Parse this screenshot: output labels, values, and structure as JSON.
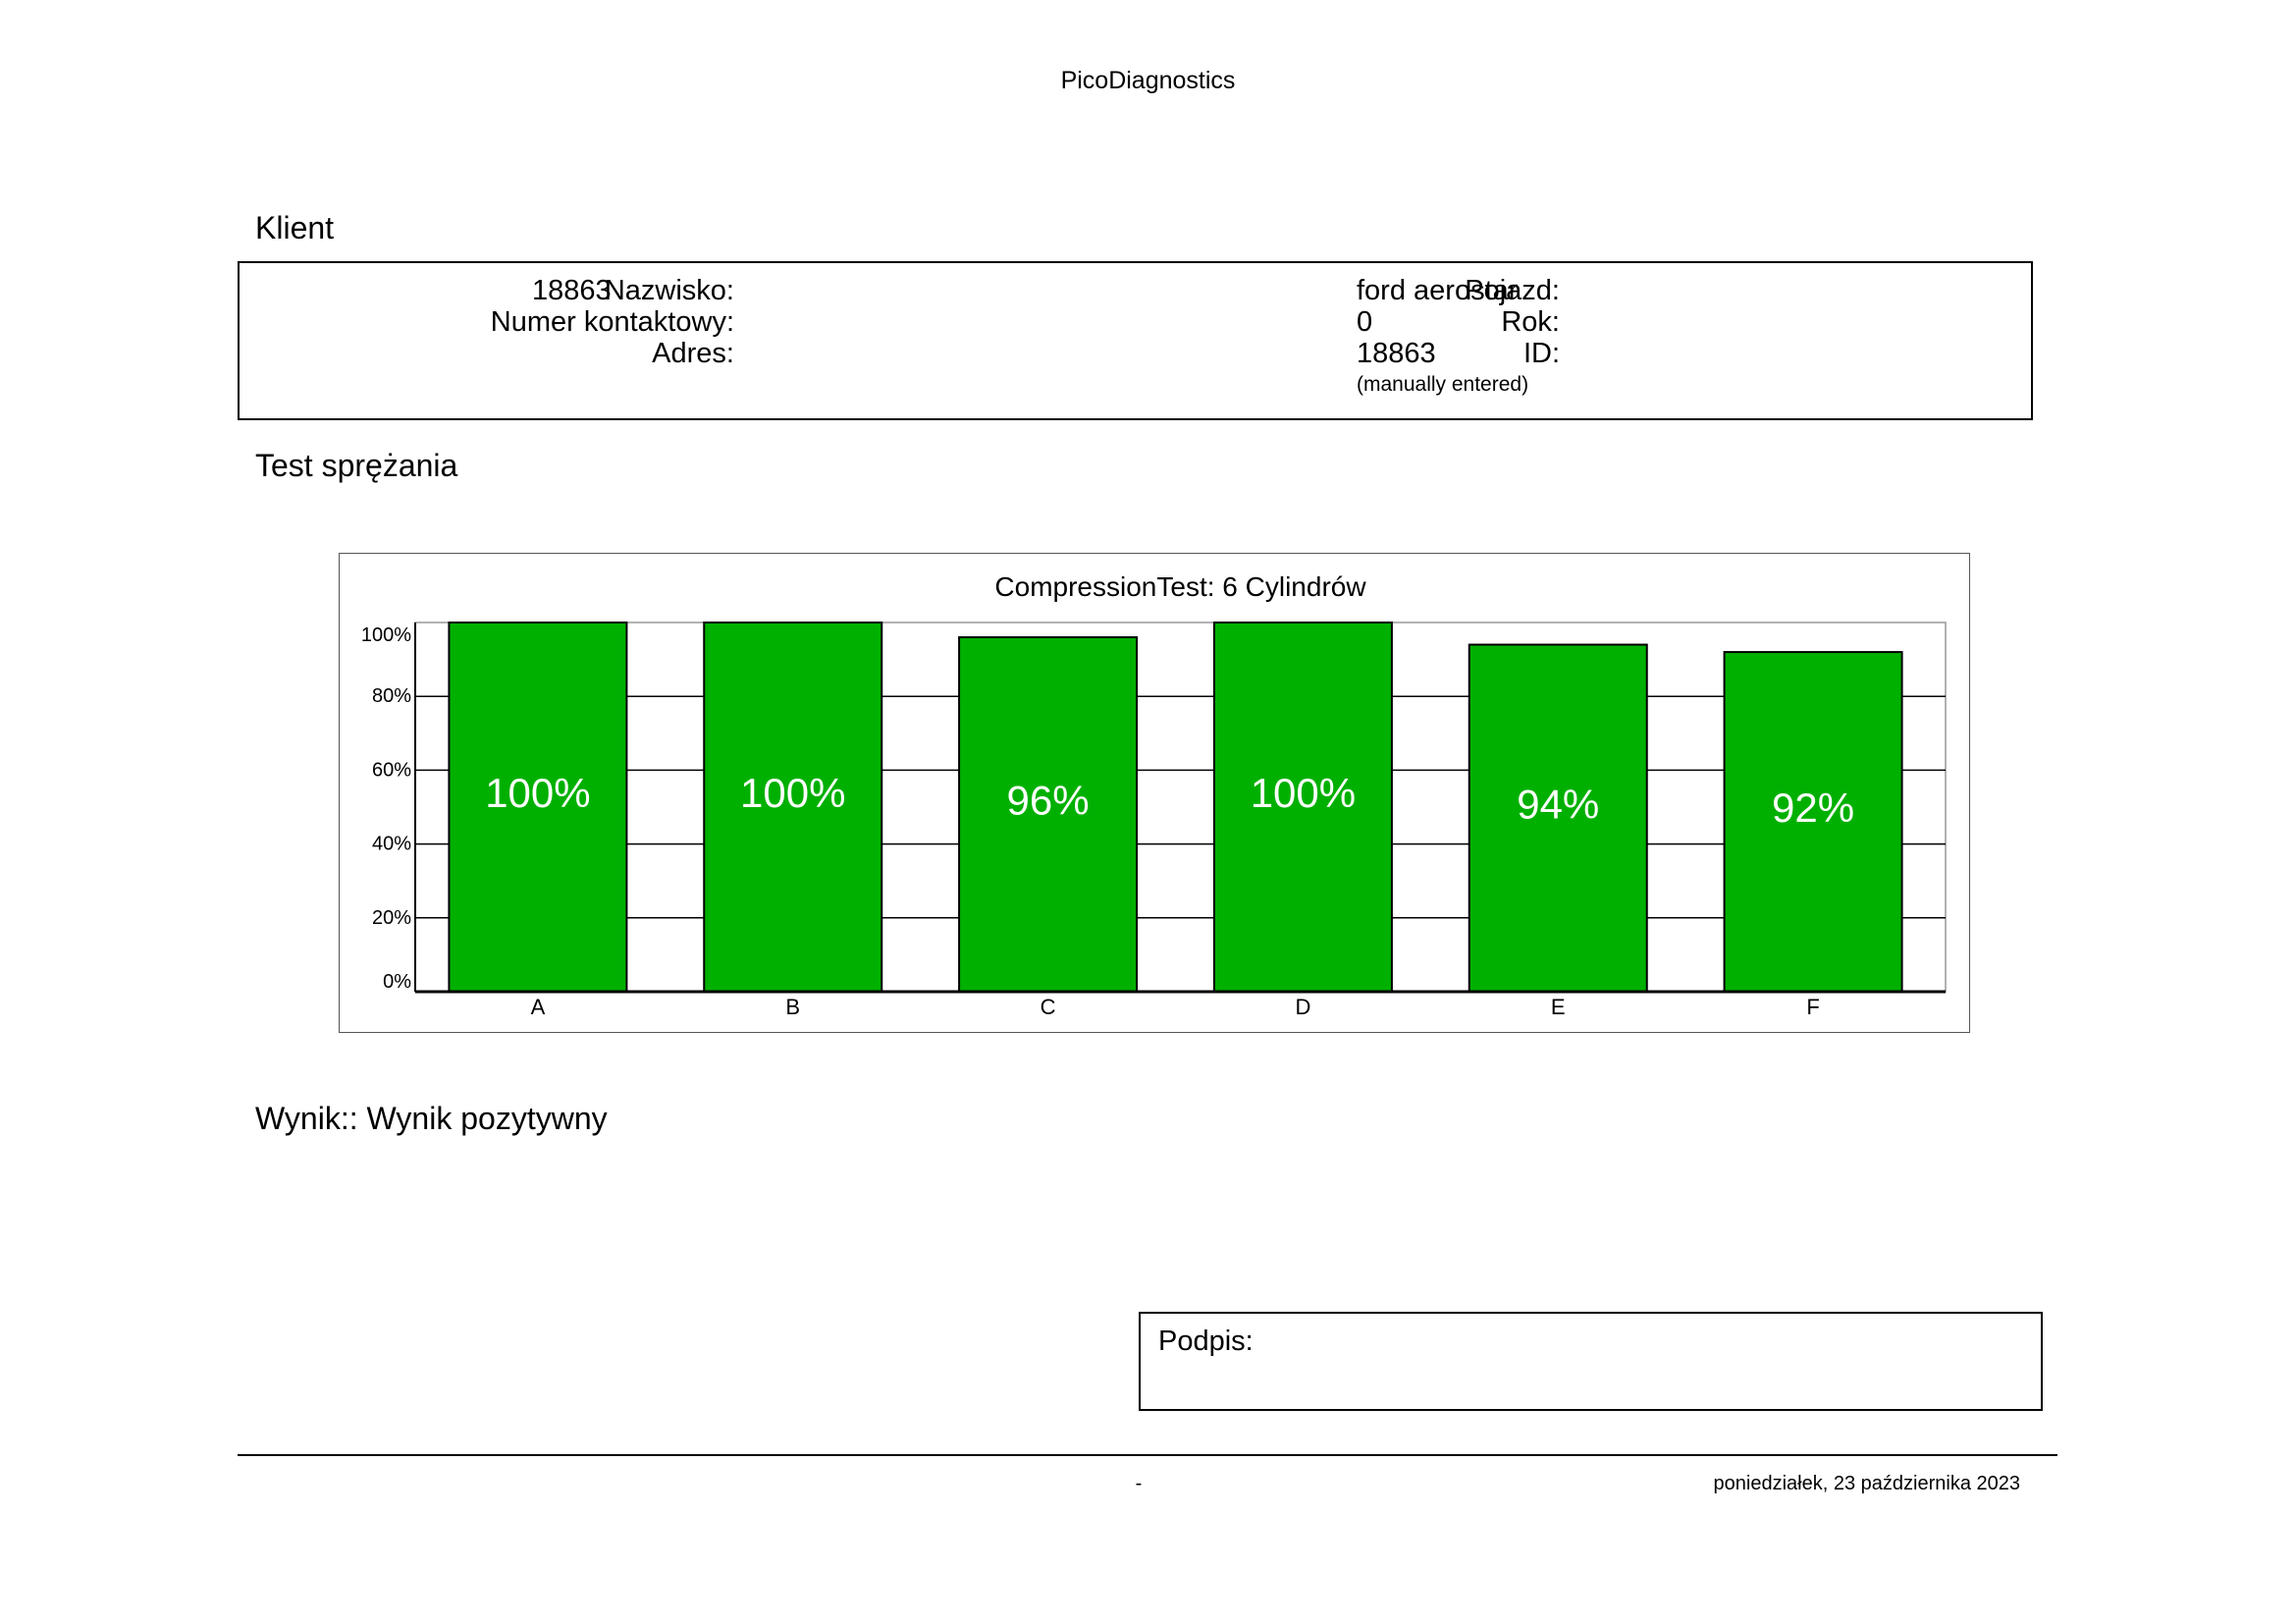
{
  "header": {
    "title": "PicoDiagnostics"
  },
  "client": {
    "section_title": "Klient",
    "name_label": "Nazwisko:",
    "name_value": "18863",
    "contact_label": "Numer kontaktowy:",
    "address_label": "Adres:",
    "vehicle_label": "Pojazd:",
    "vehicle_value": "ford aerostar",
    "year_label": "Rok:",
    "year_value": "0",
    "id_label": "ID:",
    "id_value": "18863",
    "id_note": "(manually entered)"
  },
  "test": {
    "section_title": "Test sprężania"
  },
  "chart_data": {
    "type": "bar",
    "title": "CompressionTest: 6 Cylindrów",
    "categories": [
      "A",
      "B",
      "C",
      "D",
      "E",
      "F"
    ],
    "values": [
      100,
      100,
      96,
      100,
      94,
      92
    ],
    "value_labels": [
      "100%",
      "100%",
      "96%",
      "100%",
      "94%",
      "92%"
    ],
    "ylim": [
      0,
      100
    ],
    "yticks": [
      0,
      20,
      40,
      60,
      80,
      100
    ],
    "ytick_labels": [
      "0%",
      "20%",
      "40%",
      "60%",
      "80%",
      "100%"
    ],
    "xlabel": "",
    "ylabel": "",
    "grid": true,
    "bar_color": "#00b000",
    "label_color": "#ffffff"
  },
  "result": {
    "text": "Wynik:: Wynik pozytywny"
  },
  "signature": {
    "label": "Podpis:"
  },
  "footer": {
    "center_text": "-",
    "date": "poniedziałek, 23 października 2023"
  }
}
